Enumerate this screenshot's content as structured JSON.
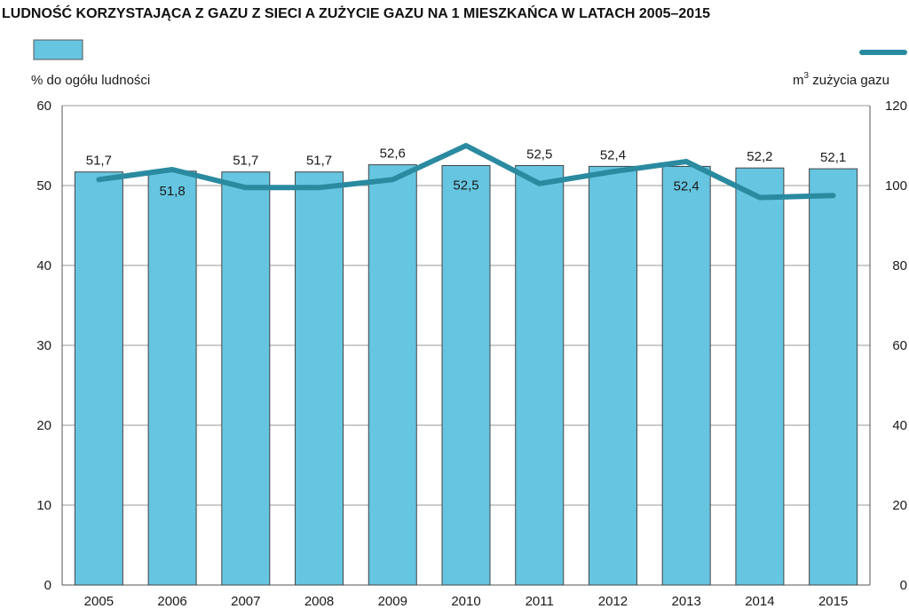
{
  "chart_data": {
    "type": "bar+line",
    "title": "LUDNOŚĆ KORZYSTAJĄCA Z GAZU Z SIECI A ZUŻYCIE GAZU NA 1 MIESZKAŃCA W LATACH 2005–2015",
    "categories": [
      "2005",
      "2006",
      "2007",
      "2008",
      "2009",
      "2010",
      "2011",
      "2012",
      "2013",
      "2014",
      "2015"
    ],
    "series": [
      {
        "kind": "bar",
        "axis": "left",
        "values": [
          51.7,
          51.8,
          51.7,
          51.7,
          52.6,
          52.5,
          52.5,
          52.4,
          52.4,
          52.2,
          52.1
        ],
        "labels": [
          "51,7",
          "51,8",
          "51,7",
          "51,7",
          "52,6",
          "52,5",
          "52,5",
          "52,4",
          "52,4",
          "52,2",
          "52,1"
        ],
        "color": "#66c5e0"
      },
      {
        "kind": "line",
        "axis": "right",
        "values": [
          101.5,
          104,
          99.5,
          99.5,
          101.5,
          110,
          100.5,
          103.5,
          106,
          97,
          97.5
        ],
        "color": "#2a8aa0"
      }
    ],
    "y_left": {
      "label": "% do ogółu ludności",
      "min": 0,
      "max": 60,
      "ticks": [
        "0",
        "10",
        "20",
        "30",
        "40",
        "50",
        "60"
      ]
    },
    "y_right": {
      "label_base": "m",
      "label_sup": "3",
      "label_rest": " zużycia gazu",
      "min": 0,
      "max": 120,
      "ticks": [
        "0",
        "20",
        "40",
        "60",
        "80",
        "100",
        "120"
      ]
    },
    "label_position": [
      "above",
      "below",
      "above",
      "above",
      "above",
      "below",
      "above",
      "above",
      "below",
      "above",
      "above"
    ],
    "grid": true,
    "legend": "top"
  }
}
